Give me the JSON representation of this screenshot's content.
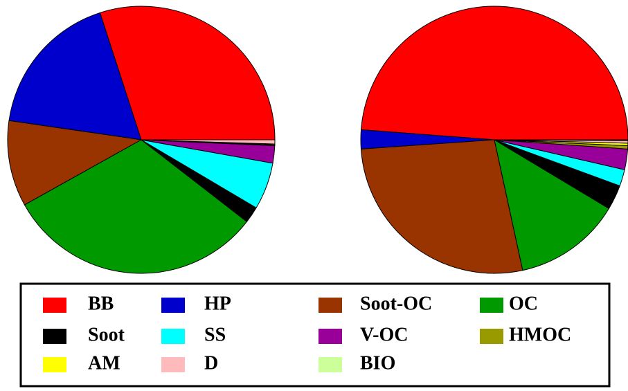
{
  "chart_data": [
    {
      "type": "pie",
      "categories": [
        "BB",
        "HP",
        "Soot-OC",
        "OC",
        "Soot",
        "SS",
        "V-OC",
        "HMOC",
        "AM",
        "D",
        "BIO"
      ],
      "colors": [
        "#ff0000",
        "#0000cc",
        "#993300",
        "#009900",
        "#000000",
        "#00ffff",
        "#990099",
        "#999900",
        "#ffff00",
        "#ffbbbb",
        "#ccff99"
      ],
      "values": [
        30,
        17.7,
        10.4,
        31.4,
        2,
        5.7,
        2.1,
        0.1,
        0.1,
        0.5,
        0
      ]
    },
    {
      "type": "pie",
      "values": [
        48.8,
        2.3,
        27.3,
        13,
        3,
        2,
        2.5,
        0.4,
        0.3,
        0.3,
        0.1
      ]
    }
  ]
}
